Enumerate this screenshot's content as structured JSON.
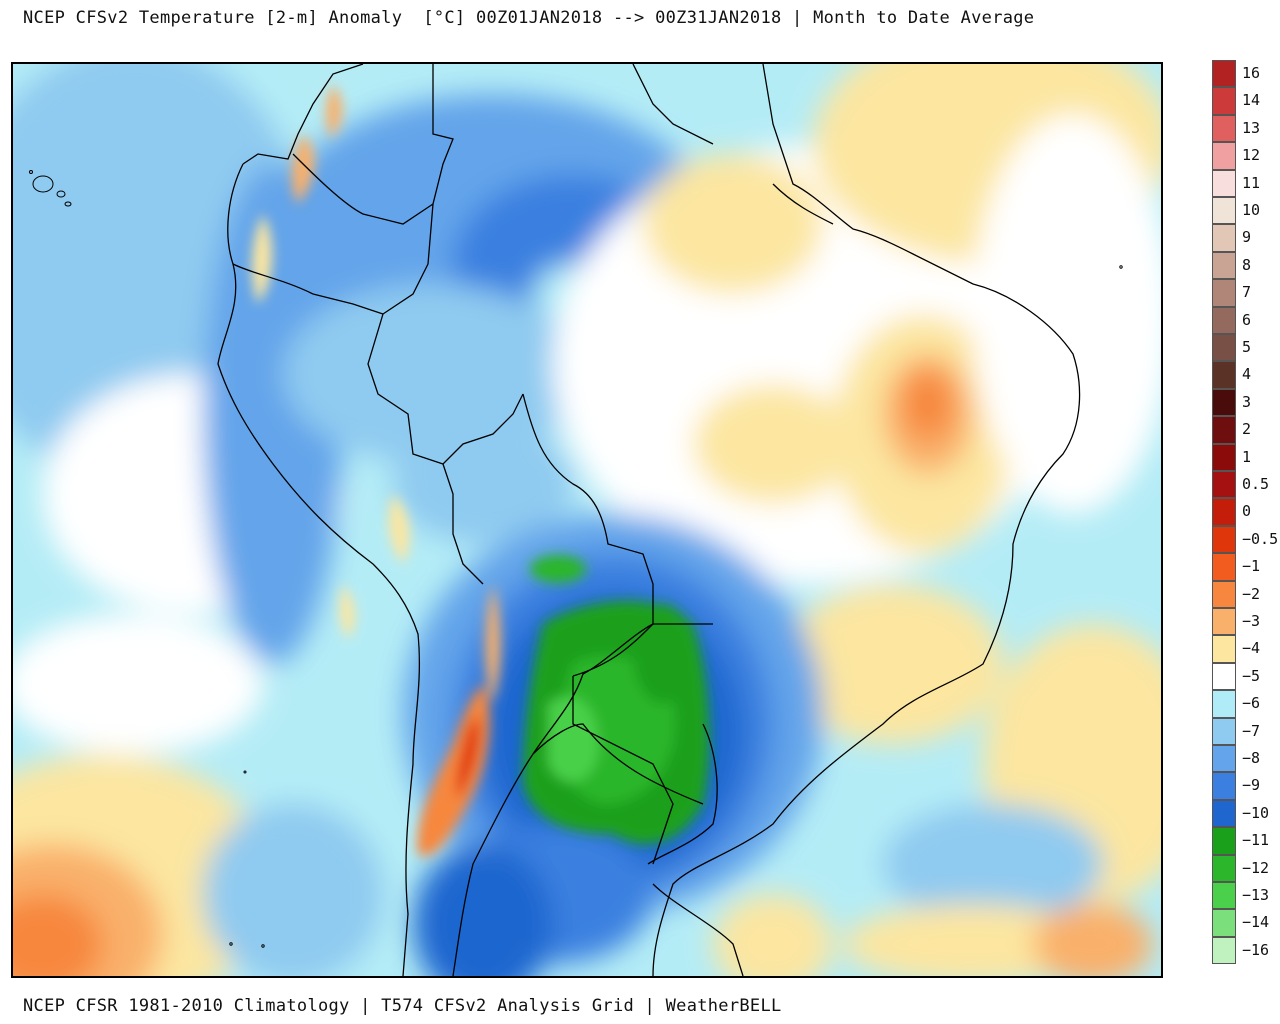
{
  "header": {
    "title": "NCEP CFSv2 Temperature [2-m] Anomaly  [°C] 00Z01JAN2018 --> 00Z31JAN2018 | Month to Date Average"
  },
  "footer": {
    "credit": "NCEP CFSR 1981-2010 Climatology | T574 CFSv2 Analysis Grid | WeatherBELL"
  },
  "map": {
    "region": "South America",
    "variable": "2-m temperature anomaly",
    "units": "°C"
  },
  "legend": {
    "entries": [
      {
        "label": "16",
        "color": "#b22222"
      },
      {
        "label": "14",
        "color": "#cd3a3a"
      },
      {
        "label": "13",
        "color": "#e06060"
      },
      {
        "label": "12",
        "color": "#f0a0a0"
      },
      {
        "label": "11",
        "color": "#f9dede"
      },
      {
        "label": "10",
        "color": "#f0e3d8"
      },
      {
        "label": "9",
        "color": "#e2c6b6"
      },
      {
        "label": "8",
        "color": "#c9a394"
      },
      {
        "label": "7",
        "color": "#b08678"
      },
      {
        "label": "6",
        "color": "#946a5e"
      },
      {
        "label": "5",
        "color": "#785046"
      },
      {
        "label": "4",
        "color": "#5a3326"
      },
      {
        "label": "3",
        "color": "#4a0b0b"
      },
      {
        "label": "2",
        "color": "#6e0e0e"
      },
      {
        "label": "1",
        "color": "#8b0a0a"
      },
      {
        "label": "0.5",
        "color": "#a51010"
      },
      {
        "label": "0",
        "color": "#c41e0a"
      },
      {
        "label": "-0.5",
        "color": "#e0360c"
      },
      {
        "label": "-1",
        "color": "#f25c1e"
      },
      {
        "label": "-2",
        "color": "#f7873e"
      },
      {
        "label": "-3",
        "color": "#f9b06a"
      },
      {
        "label": "-4",
        "color": "#fce6a0"
      },
      {
        "label": "-5",
        "color": "#ffffff"
      },
      {
        "label": "-6",
        "color": "#b0ecf7"
      },
      {
        "label": "-7",
        "color": "#8fcaf0"
      },
      {
        "label": "-8",
        "color": "#63a4ea"
      },
      {
        "label": "-9",
        "color": "#3b80e0"
      },
      {
        "label": "-10",
        "color": "#1f66cf"
      },
      {
        "label": "-11",
        "color": "#1aa01a"
      },
      {
        "label": "-12",
        "color": "#2cb62c"
      },
      {
        "label": "-13",
        "color": "#4ad04a"
      },
      {
        "label": "-14",
        "color": "#7be07b"
      },
      {
        "label": "-16",
        "color": "#c0f2c0"
      }
    ],
    "tick_labels": [
      "16",
      "14",
      "13",
      "12",
      "11",
      "10",
      "9",
      "8",
      "7",
      "6",
      "5",
      "4",
      "3",
      "2",
      "1",
      "0.5",
      "0",
      "-0.5",
      "-1",
      "-2",
      "-3",
      "-4",
      "-5",
      "-6",
      "-7",
      "-8",
      "-9",
      "-10",
      "-11",
      "-12",
      "-13",
      "-14",
      "-16"
    ],
    "box_colors": [
      "#b22222",
      "#cd3a3a",
      "#e06060",
      "#f0a0a0",
      "#f9dede",
      "#f0e3d8",
      "#e2c6b6",
      "#c9a394",
      "#b08678",
      "#946a5e",
      "#785046",
      "#5a3326",
      "#4a0b0b",
      "#6e0e0e",
      "#8b0a0a",
      "#a51010",
      "#c41e0a",
      "#e0360c",
      "#f25c1e",
      "#f7873e",
      "#f9b06a",
      "#fce6a0",
      "#ffffff",
      "#b0ecf7",
      "#8fcaf0",
      "#63a4ea",
      "#3b80e0",
      "#1f66cf",
      "#1aa01a",
      "#2cb62c",
      "#4ad04a",
      "#7be07b",
      "#c0f2c0",
      "#e4e0fa",
      "#c2b8f4",
      "#9d8ee9",
      "#7462dc",
      "#4a3bc8",
      "#2a22a8",
      "#5a0f5a",
      "#86127c",
      "#a8149c",
      "#c41ab8",
      "#e21ed4",
      "#f08ae8"
    ]
  }
}
